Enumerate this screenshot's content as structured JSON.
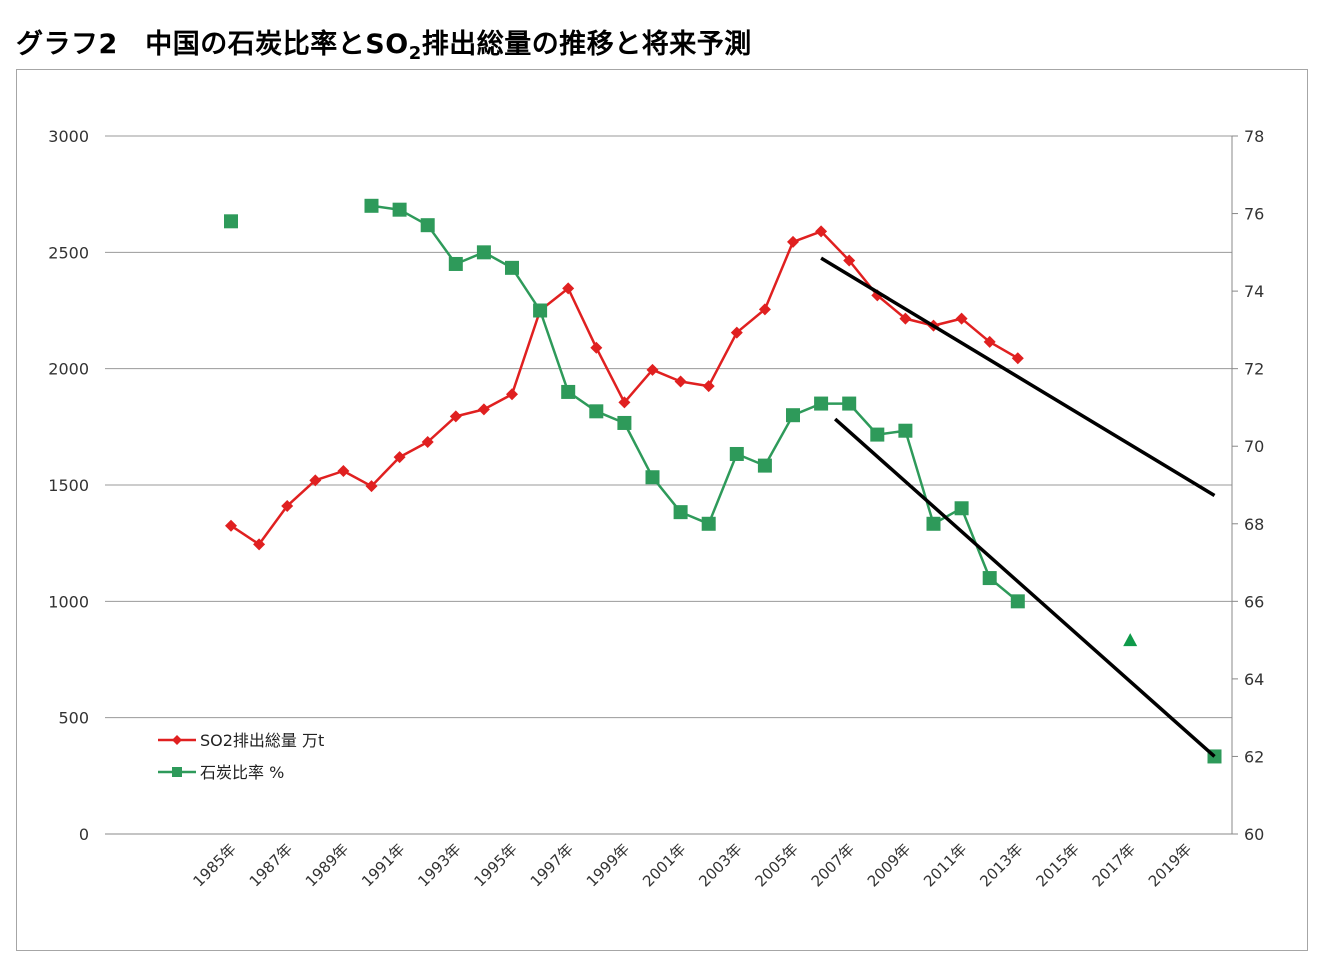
{
  "title": {
    "main": "グラフ2　中国の石炭比率とSO",
    "sub": "2",
    "rest": "排出総量の推移と将来予測"
  },
  "chart_data": {
    "type": "line",
    "x": [
      "1985年",
      "1986年",
      "1987年",
      "1988年",
      "1989年",
      "1990年",
      "1991年",
      "1992年",
      "1993年",
      "1994年",
      "1995年",
      "1996年",
      "1997年",
      "1998年",
      "1999年",
      "2000年",
      "2001年",
      "2002年",
      "2003年",
      "2004年",
      "2005年",
      "2006年",
      "2007年",
      "2008年",
      "2009年",
      "2010年",
      "2011年",
      "2012年",
      "2013年",
      "2014年",
      "2015年",
      "2016年",
      "2017年",
      "2018年",
      "2019年",
      "2020年"
    ],
    "x_tick_labels": [
      "1985年",
      "1987年",
      "1989年",
      "1991年",
      "1993年",
      "1995年",
      "1997年",
      "1999年",
      "2001年",
      "2003年",
      "2005年",
      "2007年",
      "2009年",
      "2011年",
      "2013年",
      "2015年",
      "2017年",
      "2019年"
    ],
    "y_left": {
      "ylim": [
        0,
        3000
      ],
      "ticks": [
        0,
        500,
        1000,
        1500,
        2000,
        2500,
        3000
      ]
    },
    "y_right": {
      "ylim": [
        60,
        78
      ],
      "ticks": [
        60,
        62,
        64,
        66,
        68,
        70,
        72,
        74,
        76,
        78
      ]
    },
    "grid": true,
    "legend_position": "bottom-left",
    "series": [
      {
        "name": "SO2排出総量 万t",
        "axis": "left",
        "color": "#e02020",
        "marker": "diamond",
        "values": [
          1325,
          1245,
          1410,
          1520,
          1560,
          1495,
          1620,
          1685,
          1795,
          1825,
          1890,
          2250,
          2345,
          2090,
          1855,
          1995,
          1945,
          1925,
          2155,
          2255,
          2545,
          2590,
          2465,
          2315,
          2215,
          2185,
          2215,
          2115,
          2045,
          null,
          null,
          null,
          null,
          null,
          null,
          null
        ]
      },
      {
        "name": "石炭比率 %",
        "axis": "right",
        "color": "#2e9a5a",
        "marker": "square",
        "values": [
          75.8,
          null,
          null,
          null,
          null,
          76.2,
          76.1,
          75.7,
          74.7,
          75.0,
          74.6,
          73.5,
          71.4,
          70.9,
          70.6,
          69.2,
          68.3,
          68.0,
          69.8,
          69.5,
          70.8,
          71.1,
          71.1,
          70.3,
          70.4,
          68.0,
          68.4,
          66.6,
          66.0,
          null,
          null,
          null,
          null,
          null,
          null,
          62.0
        ]
      }
    ],
    "extra_points": [
      {
        "x": "2017年",
        "y": 65.0,
        "axis": "right",
        "marker": "triangle",
        "color": "#0f9a4a"
      }
    ],
    "trend_lines": [
      {
        "axis": "left",
        "from": {
          "x": 2006.0,
          "y": 2475
        },
        "to": {
          "x": 2020.0,
          "y": 1455
        },
        "color": "#000000"
      },
      {
        "axis": "right",
        "from": {
          "x": 2006.5,
          "y": 70.7
        },
        "to": {
          "x": 2020.0,
          "y": 62.0
        },
        "color": "#000000"
      }
    ]
  }
}
